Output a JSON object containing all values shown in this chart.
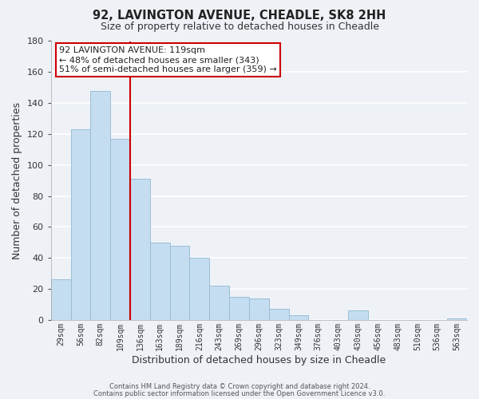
{
  "title1": "92, LAVINGTON AVENUE, CHEADLE, SK8 2HH",
  "title2": "Size of property relative to detached houses in Cheadle",
  "xlabel": "Distribution of detached houses by size in Cheadle",
  "ylabel": "Number of detached properties",
  "bin_labels": [
    "29sqm",
    "56sqm",
    "82sqm",
    "109sqm",
    "136sqm",
    "163sqm",
    "189sqm",
    "216sqm",
    "243sqm",
    "269sqm",
    "296sqm",
    "323sqm",
    "349sqm",
    "376sqm",
    "403sqm",
    "430sqm",
    "456sqm",
    "483sqm",
    "510sqm",
    "536sqm",
    "563sqm"
  ],
  "bar_values": [
    26,
    123,
    148,
    117,
    91,
    50,
    48,
    40,
    22,
    15,
    14,
    7,
    3,
    0,
    0,
    6,
    0,
    0,
    0,
    0,
    1
  ],
  "bar_color": "#c5ddf0",
  "bar_edge_color": "#9bbdd6",
  "vline_color": "#cc0000",
  "annotation_title": "92 LAVINGTON AVENUE: 119sqm",
  "annotation_line1": "← 48% of detached houses are smaller (343)",
  "annotation_line2": "51% of semi-detached houses are larger (359) →",
  "annotation_box_color": "#ffffff",
  "annotation_box_edge": "#cc0000",
  "ylim": [
    0,
    180
  ],
  "yticks": [
    0,
    20,
    40,
    60,
    80,
    100,
    120,
    140,
    160,
    180
  ],
  "footer1": "Contains HM Land Registry data © Crown copyright and database right 2024.",
  "footer2": "Contains public sector information licensed under the Open Government Licence v3.0.",
  "background_color": "#eef2f7",
  "grid_color": "#ffffff",
  "vline_index": 3
}
